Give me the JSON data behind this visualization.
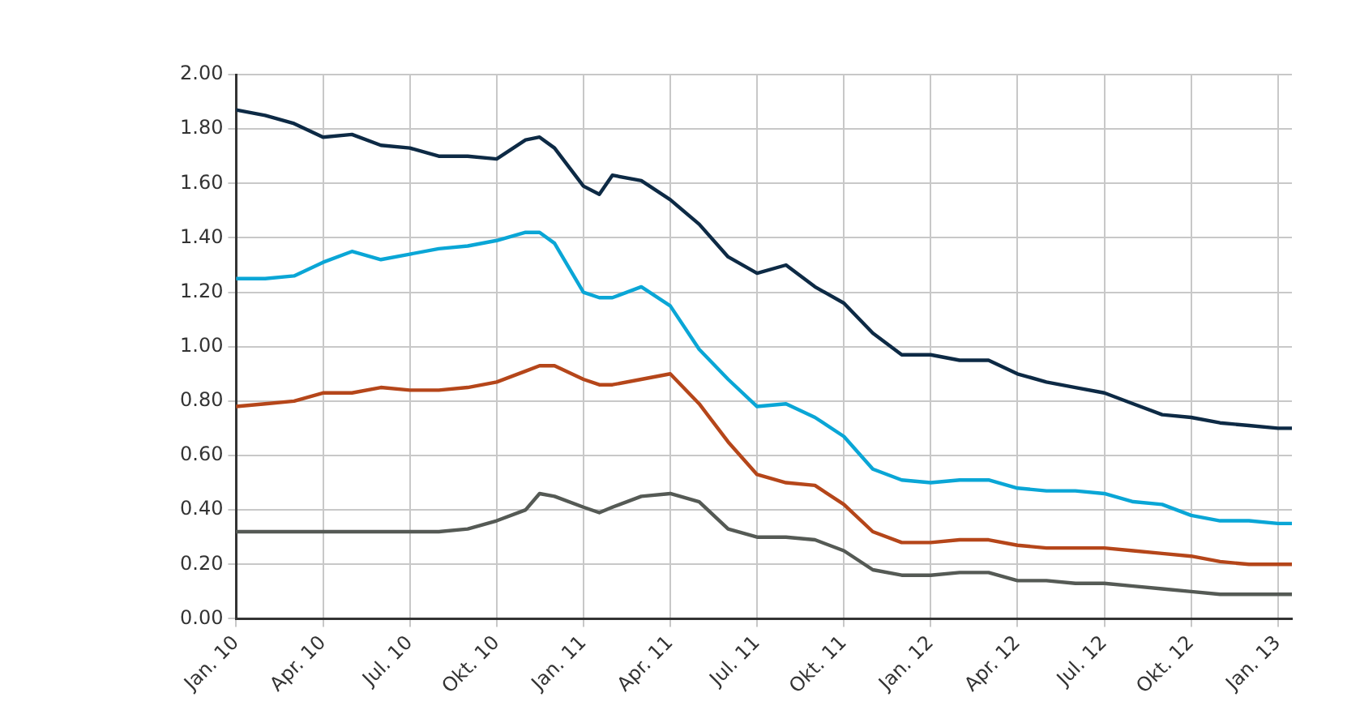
{
  "chart_data": {
    "type": "line",
    "x": [
      "2010-01",
      "2010-02",
      "2010-03",
      "2010-04",
      "2010-05",
      "2010-06",
      "2010-07",
      "2010-08",
      "2010-09",
      "2010-10",
      "2010-11",
      "2010-11-16",
      "2010-12",
      "2011-01",
      "2011-01-18",
      "2011-02",
      "2011-03",
      "2011-04",
      "2011-05",
      "2011-06",
      "2011-07",
      "2011-08",
      "2011-09",
      "2011-10",
      "2011-11",
      "2011-12",
      "2012-01",
      "2012-02",
      "2012-03",
      "2012-04",
      "2012-05",
      "2012-06",
      "2012-07",
      "2012-08",
      "2012-09",
      "2012-10",
      "2012-11",
      "2012-12",
      "2013-01",
      "2013-01-16"
    ],
    "series": [
      {
        "color": "#0d2a45",
        "values": [
          1.87,
          1.85,
          1.82,
          1.77,
          1.78,
          1.74,
          1.73,
          1.7,
          1.7,
          1.69,
          1.76,
          1.77,
          1.73,
          1.59,
          1.56,
          1.63,
          1.61,
          1.54,
          1.45,
          1.33,
          1.27,
          1.3,
          1.22,
          1.16,
          1.05,
          0.97,
          0.97,
          0.95,
          0.95,
          0.9,
          0.87,
          0.85,
          0.83,
          0.79,
          0.75,
          0.74,
          0.72,
          0.71,
          0.7,
          0.7
        ]
      },
      {
        "color": "#0aa6d6",
        "values": [
          1.25,
          1.25,
          1.26,
          1.31,
          1.35,
          1.32,
          1.34,
          1.36,
          1.37,
          1.39,
          1.42,
          1.42,
          1.38,
          1.2,
          1.18,
          1.18,
          1.22,
          1.15,
          0.99,
          0.88,
          0.78,
          0.79,
          0.74,
          0.67,
          0.55,
          0.51,
          0.5,
          0.51,
          0.51,
          0.48,
          0.47,
          0.47,
          0.46,
          0.43,
          0.42,
          0.38,
          0.36,
          0.36,
          0.35,
          0.35
        ]
      },
      {
        "color": "#b5461a",
        "values": [
          0.78,
          0.79,
          0.8,
          0.83,
          0.83,
          0.85,
          0.84,
          0.84,
          0.85,
          0.87,
          0.91,
          0.93,
          0.93,
          0.88,
          0.86,
          0.86,
          0.88,
          0.9,
          0.79,
          0.65,
          0.53,
          0.5,
          0.49,
          0.42,
          0.32,
          0.28,
          0.28,
          0.29,
          0.29,
          0.27,
          0.26,
          0.26,
          0.26,
          0.25,
          0.24,
          0.23,
          0.21,
          0.2,
          0.2,
          0.2
        ]
      },
      {
        "color": "#555a55",
        "values": [
          0.32,
          0.32,
          0.32,
          0.32,
          0.32,
          0.32,
          0.32,
          0.32,
          0.33,
          0.36,
          0.4,
          0.46,
          0.45,
          0.41,
          0.39,
          0.41,
          0.45,
          0.46,
          0.43,
          0.33,
          0.3,
          0.3,
          0.29,
          0.25,
          0.18,
          0.16,
          0.16,
          0.17,
          0.17,
          0.14,
          0.14,
          0.13,
          0.13,
          0.12,
          0.11,
          0.1,
          0.09,
          0.09,
          0.09,
          0.09
        ]
      }
    ],
    "xlim": [
      "2010-01",
      "2013-01-16"
    ],
    "xticks": [
      {
        "value": "2010-01",
        "label": "Jan. 10"
      },
      {
        "value": "2010-04",
        "label": "Apr. 10"
      },
      {
        "value": "2010-07",
        "label": "Jul. 10"
      },
      {
        "value": "2010-10",
        "label": "Okt. 10"
      },
      {
        "value": "2011-01",
        "label": "Jan. 11"
      },
      {
        "value": "2011-04",
        "label": "Apr. 11"
      },
      {
        "value": "2011-07",
        "label": "Jul. 11"
      },
      {
        "value": "2011-10",
        "label": "Okt. 11"
      },
      {
        "value": "2012-01",
        "label": "Jan. 12"
      },
      {
        "value": "2012-04",
        "label": "Apr. 12"
      },
      {
        "value": "2012-07",
        "label": "Jul. 12"
      },
      {
        "value": "2012-10",
        "label": "Okt. 12"
      },
      {
        "value": "2013-01",
        "label": "Jan. 13"
      }
    ],
    "ylim": [
      0,
      2
    ],
    "yticks": [
      {
        "value": 0,
        "label": "0.00"
      },
      {
        "value": 0.2,
        "label": "0.20"
      },
      {
        "value": 0.4,
        "label": "0.40"
      },
      {
        "value": 0.6,
        "label": "0.60"
      },
      {
        "value": 0.8,
        "label": "0.80"
      },
      {
        "value": 1,
        "label": "1.00"
      },
      {
        "value": 1.2,
        "label": "1.20"
      },
      {
        "value": 1.4,
        "label": "1.40"
      },
      {
        "value": 1.6,
        "label": "1.60"
      },
      {
        "value": 1.8,
        "label": "1.80"
      },
      {
        "value": 2,
        "label": "2.00"
      }
    ],
    "grid": true,
    "legend": false,
    "marker": "none",
    "line_style": "solid"
  }
}
